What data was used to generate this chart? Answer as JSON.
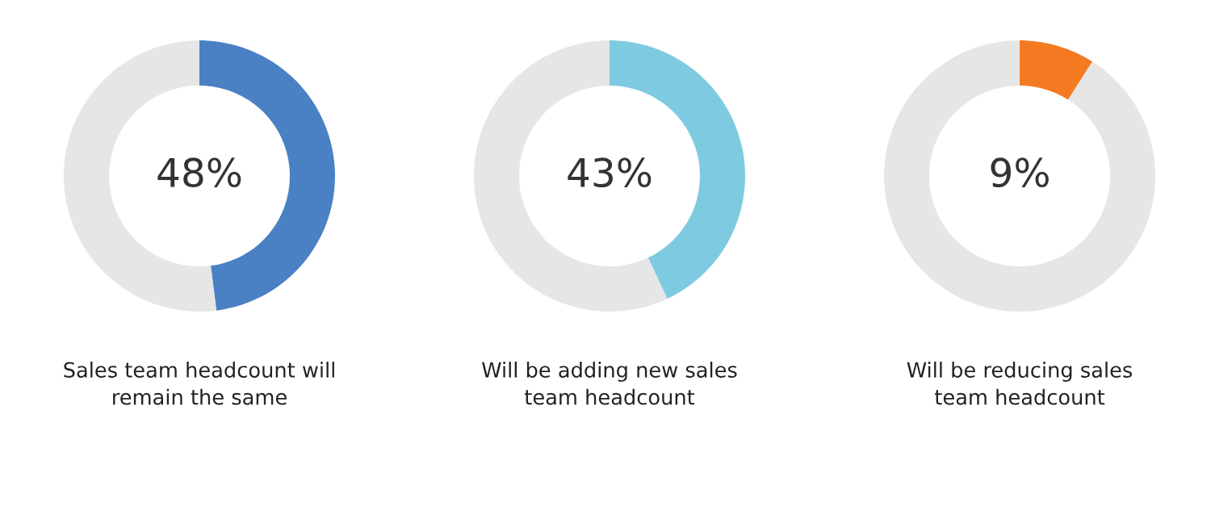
{
  "chart_data": [
    {
      "type": "donut",
      "title": "Sales team headcount will\nremain the same",
      "categories": [
        null,
        null
      ],
      "values": [
        48,
        52
      ],
      "colors": [
        "#4a81c5",
        "#e6e6e6"
      ],
      "value_labels": [
        "48%",
        null
      ]
    },
    {
      "type": "donut",
      "title": "Will be adding new sales\nteam headcount",
      "categories": [
        null,
        null
      ],
      "values": [
        43,
        57
      ],
      "colors": [
        "#7ecae1",
        "#e6e6e6"
      ],
      "value_labels": [
        "43%",
        null
      ]
    },
    {
      "type": "donut",
      "title": "Will be reducing sales\nteam headcount",
      "categories": [
        null,
        null
      ],
      "values": [
        9,
        91
      ],
      "colors": [
        "#f47a21",
        "#e6e6e6"
      ],
      "value_labels": [
        "9%",
        null
      ]
    }
  ]
}
